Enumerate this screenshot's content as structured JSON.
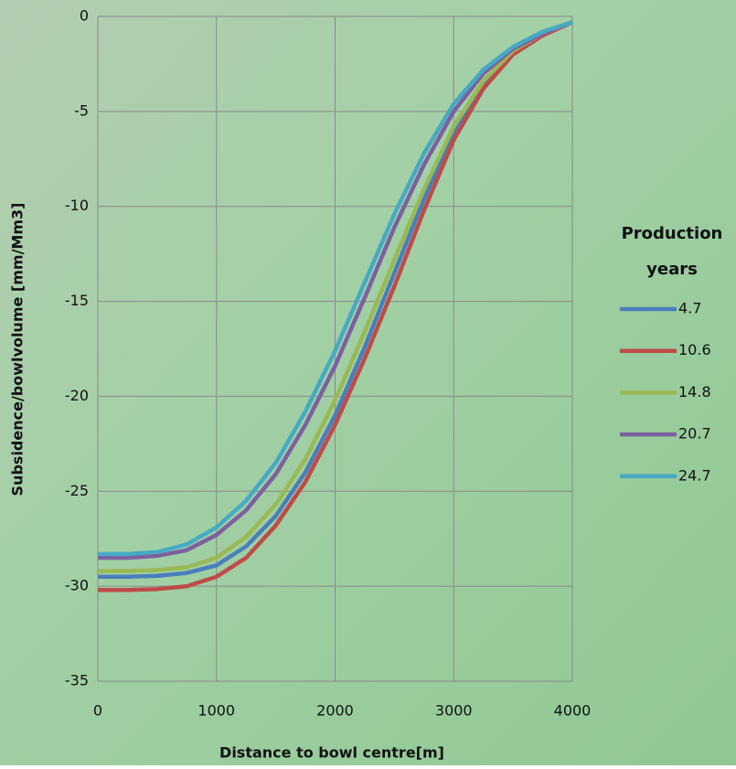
{
  "chart_data": {
    "type": "line",
    "x_label": "Distance to bowl centre[m]",
    "y_label": "Subsidence/bowlvolume [mm/Mm3]",
    "legend_title": "Production years",
    "legend_position": "right",
    "grid": true,
    "xlim": [
      0,
      4000
    ],
    "xticks": [
      0,
      1000,
      2000,
      3000,
      4000
    ],
    "ylim": [
      -35,
      0
    ],
    "yticks": [
      -35,
      -30,
      -25,
      -20,
      -15,
      -10,
      -5,
      0
    ],
    "x": [
      0,
      250,
      500,
      750,
      1000,
      1250,
      1500,
      1750,
      2000,
      2250,
      2500,
      2750,
      3000,
      3250,
      3500,
      3750,
      4000
    ],
    "series": [
      {
        "name": "4.7",
        "color": "#4a7ebb",
        "values": [
          -29.5,
          -29.5,
          -29.45,
          -29.3,
          -28.9,
          -27.9,
          -26.3,
          -24,
          -21,
          -17.4,
          -13.5,
          -9.6,
          -6.1,
          -3.6,
          -1.9,
          -0.9,
          -0.3
        ]
      },
      {
        "name": "10.6",
        "color": "#be4b48",
        "values": [
          -30.2,
          -30.2,
          -30.15,
          -30,
          -29.5,
          -28.5,
          -26.8,
          -24.5,
          -21.5,
          -18,
          -14.2,
          -10.2,
          -6.5,
          -3.8,
          -2,
          -1,
          -0.3
        ]
      },
      {
        "name": "14.8",
        "color": "#98b954",
        "values": [
          -29.2,
          -29.2,
          -29.15,
          -29,
          -28.5,
          -27.4,
          -25.7,
          -23.3,
          -20.2,
          -16.6,
          -12.8,
          -9.1,
          -5.8,
          -3.4,
          -1.8,
          -0.9,
          -0.3
        ]
      },
      {
        "name": "20.7",
        "color": "#7d60a0",
        "values": [
          -28.5,
          -28.5,
          -28.4,
          -28.1,
          -27.3,
          -26,
          -24.1,
          -21.5,
          -18.4,
          -14.8,
          -11.1,
          -7.8,
          -5,
          -3,
          -1.7,
          -0.9,
          -0.3
        ]
      },
      {
        "name": "24.7",
        "color": "#46aac5",
        "values": [
          -28.3,
          -28.3,
          -28.2,
          -27.8,
          -26.9,
          -25.5,
          -23.5,
          -20.8,
          -17.6,
          -14,
          -10.4,
          -7.2,
          -4.6,
          -2.8,
          -1.6,
          -0.8,
          -0.3
        ]
      }
    ]
  }
}
